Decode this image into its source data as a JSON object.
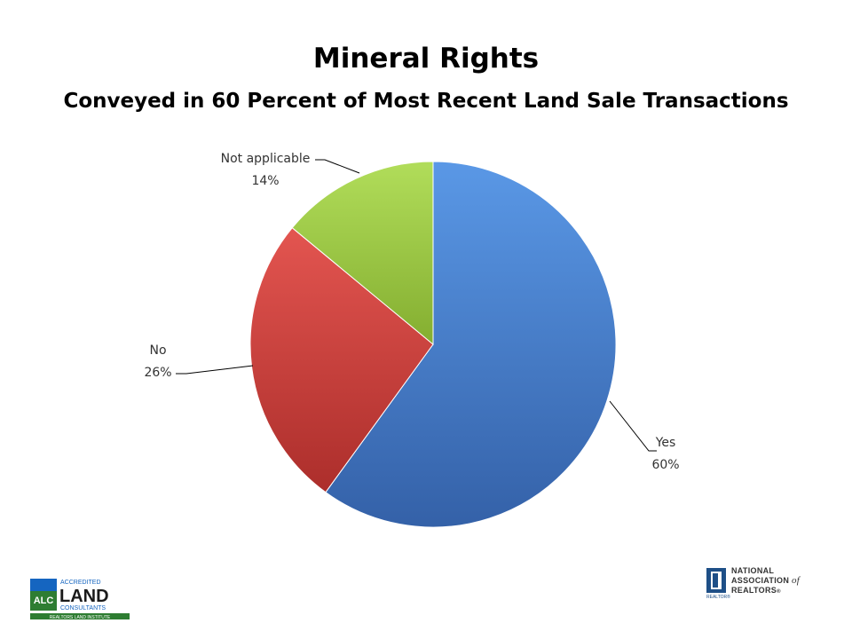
{
  "chart_data": {
    "type": "pie",
    "title": "Mineral Rights",
    "subtitle": "Conveyed in 60 Percent of Most Recent Land Sale Transactions",
    "slices": [
      {
        "name": "Yes",
        "value": 60,
        "label": "60%",
        "color": "#4a86d8"
      },
      {
        "name": "No",
        "value": 26,
        "label": "26%",
        "color": "#d9443f"
      },
      {
        "name": "Not applicable",
        "value": 14,
        "label": "14%",
        "color": "#9ccc42"
      }
    ],
    "start_angle": "12 o'clock, clockwise"
  },
  "logos": {
    "left": {
      "text": "ALC ACCREDITED LAND CONSULTANTS REALTORS LAND INSTITUTE"
    },
    "right": {
      "text": "NATIONAL ASSOCIATION of REALTORS",
      "small": "REALTOR®"
    }
  }
}
